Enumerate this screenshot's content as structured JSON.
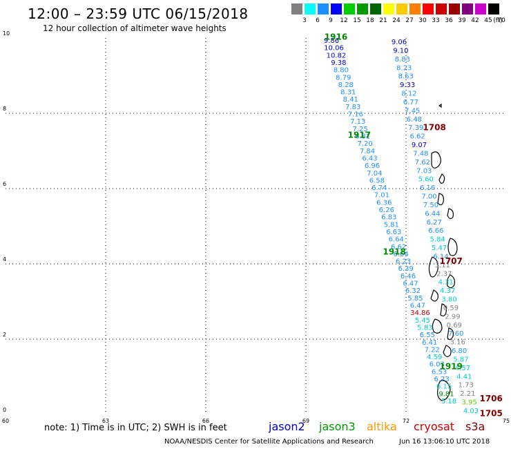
{
  "header": {
    "title": "12:00 – 23:59 UTC 06/15/2018",
    "subtitle": "12 hour collection of altimeter wave heights"
  },
  "colorbar": {
    "unit_label": "(ft)",
    "bins": [
      {
        "label": "3",
        "color": "#808080"
      },
      {
        "label": "6",
        "color": "#00ffff"
      },
      {
        "label": "9",
        "color": "#1e90ff"
      },
      {
        "label": "12",
        "color": "#0000ff"
      },
      {
        "label": "15",
        "color": "#00cc00"
      },
      {
        "label": "18",
        "color": "#009900"
      },
      {
        "label": "21",
        "color": "#006400"
      },
      {
        "label": "24",
        "color": "#ffff00"
      },
      {
        "label": "27",
        "color": "#ffcc00"
      },
      {
        "label": "30",
        "color": "#ff8000"
      },
      {
        "label": "33",
        "color": "#ff0000"
      },
      {
        "label": "36",
        "color": "#cc0000"
      },
      {
        "label": "39",
        "color": "#990000"
      },
      {
        "label": "42",
        "color": "#800080"
      },
      {
        "label": "45",
        "color": "#cc00cc"
      },
      {
        "label": "70",
        "color": "#000000"
      }
    ]
  },
  "axes": {
    "lon_ticks": [
      "60",
      "63",
      "66",
      "69",
      "72",
      "75"
    ],
    "lat_ticks": [
      "0",
      "2",
      "4",
      "6",
      "8",
      "10"
    ]
  },
  "tracks": {
    "pass_labels": [
      {
        "text": "1916",
        "color": "#008800",
        "lon": 69.9,
        "lat": 9.95
      },
      {
        "text": "1917",
        "color": "#008800",
        "lon": 70.6,
        "lat": 7.35
      },
      {
        "text": "1918",
        "color": "#008800",
        "lon": 71.65,
        "lat": 4.25
      },
      {
        "text": "1919",
        "color": "#008800",
        "lon": 73.35,
        "lat": 1.2
      },
      {
        "text": "1708",
        "color": "#800000",
        "lon": 72.85,
        "lat": 7.55
      },
      {
        "text": "1707",
        "color": "#800000",
        "lon": 73.35,
        "lat": 4.0
      },
      {
        "text": "1706",
        "color": "#800000",
        "lon": 74.55,
        "lat": 0.35
      },
      {
        "text": "1705",
        "color": "#800000",
        "lon": 74.55,
        "lat": -0.05
      }
    ],
    "west_track": [
      {
        "v": "9.86",
        "c": "#0000cc"
      },
      {
        "v": "10.06",
        "c": "#0000cc"
      },
      {
        "v": "10.82",
        "c": "#0000cc"
      },
      {
        "v": "9.38",
        "c": "#0000cc"
      },
      {
        "v": "8.80",
        "c": "#1e90ff"
      },
      {
        "v": "8.79",
        "c": "#1e90ff"
      },
      {
        "v": "8.28",
        "c": "#1e90ff"
      },
      {
        "v": "8.31",
        "c": "#1e90ff"
      },
      {
        "v": "8.41",
        "c": "#1e90ff"
      },
      {
        "v": "7.83",
        "c": "#1e90ff"
      },
      {
        "v": "7.16",
        "c": "#1e90ff"
      },
      {
        "v": "7.13",
        "c": "#1e90ff"
      },
      {
        "v": "7.25",
        "c": "#1e90ff"
      },
      {
        "v": "6.81",
        "c": "#1e90ff"
      },
      {
        "v": "7.20",
        "c": "#1e90ff"
      },
      {
        "v": "7.84",
        "c": "#1e90ff"
      },
      {
        "v": "6.43",
        "c": "#1e90ff"
      },
      {
        "v": "6.96",
        "c": "#1e90ff"
      },
      {
        "v": "7.04",
        "c": "#1e90ff"
      },
      {
        "v": "6.58",
        "c": "#1e90ff"
      },
      {
        "v": "6.74",
        "c": "#1e90ff"
      },
      {
        "v": "7.01",
        "c": "#1e90ff"
      },
      {
        "v": "6.36",
        "c": "#1e90ff"
      },
      {
        "v": "6.26",
        "c": "#1e90ff"
      },
      {
        "v": "6.83",
        "c": "#1e90ff"
      },
      {
        "v": "5.81",
        "c": "#1e90ff"
      },
      {
        "v": "6.63",
        "c": "#1e90ff"
      },
      {
        "v": "6.64",
        "c": "#1e90ff"
      },
      {
        "v": "6.62",
        "c": "#1e90ff"
      },
      {
        "v": "6.64",
        "c": "#1e90ff"
      },
      {
        "v": "6.23",
        "c": "#1e90ff"
      },
      {
        "v": "6.39",
        "c": "#1e90ff"
      },
      {
        "v": "6.46",
        "c": "#1e90ff"
      },
      {
        "v": "6.47",
        "c": "#1e90ff"
      },
      {
        "v": "6.32",
        "c": "#1e90ff"
      },
      {
        "v": "5.85",
        "c": "#1e90ff"
      },
      {
        "v": "6.47",
        "c": "#1e90ff"
      },
      {
        "v": "34.86",
        "c": "#cc0000"
      },
      {
        "v": "5.45",
        "c": "#00cccc"
      },
      {
        "v": "5.83",
        "c": "#00cccc"
      },
      {
        "v": "6.55",
        "c": "#1e90ff"
      },
      {
        "v": "6.41",
        "c": "#1e90ff"
      },
      {
        "v": "7.22",
        "c": "#1e90ff"
      },
      {
        "v": "4.59",
        "c": "#00cccc"
      },
      {
        "v": "6.03",
        "c": "#1e90ff"
      },
      {
        "v": "6.53",
        "c": "#1e90ff"
      },
      {
        "v": "6.23",
        "c": "#1e90ff"
      },
      {
        "v": "6.15",
        "c": "#00cccc"
      },
      {
        "v": "9.81",
        "c": "#008800"
      },
      {
        "v": "5.18",
        "c": "#00cccc"
      }
    ],
    "east_track": [
      {
        "v": "9.06",
        "c": "#0000cc"
      },
      {
        "v": "9.10",
        "c": "#0000cc"
      },
      {
        "v": "8.83",
        "c": "#1e90ff"
      },
      {
        "v": "8.23",
        "c": "#1e90ff"
      },
      {
        "v": "8.63",
        "c": "#1e90ff"
      },
      {
        "v": "9.33",
        "c": "#0000cc"
      },
      {
        "v": "8.12",
        "c": "#1e90ff"
      },
      {
        "v": "6.77",
        "c": "#1e90ff"
      },
      {
        "v": "7.45",
        "c": "#1e90ff"
      },
      {
        "v": "6.48",
        "c": "#1e90ff"
      },
      {
        "v": "7.39",
        "c": "#1e90ff"
      },
      {
        "v": "6.62",
        "c": "#1e90ff"
      },
      {
        "v": "9.07",
        "c": "#0000cc"
      },
      {
        "v": "7.48",
        "c": "#1e90ff"
      },
      {
        "v": "7.62",
        "c": "#1e90ff"
      },
      {
        "v": "7.03",
        "c": "#1e90ff"
      },
      {
        "v": "5.60",
        "c": "#00cccc"
      },
      {
        "v": "6.16",
        "c": "#1e90ff"
      },
      {
        "v": "7.00",
        "c": "#1e90ff"
      },
      {
        "v": "7.50",
        "c": "#1e90ff"
      },
      {
        "v": "6.44",
        "c": "#1e90ff"
      },
      {
        "v": "6.27",
        "c": "#1e90ff"
      },
      {
        "v": "6.66",
        "c": "#1e90ff"
      },
      {
        "v": "5.84",
        "c": "#00cccc"
      },
      {
        "v": "5.47",
        "c": "#00cccc"
      },
      {
        "v": "6.14",
        "c": "#1e90ff"
      },
      {
        "v": "3.11",
        "c": "#808080"
      },
      {
        "v": "2.37",
        "c": "#808080"
      },
      {
        "v": "4.31",
        "c": "#00cccc"
      },
      {
        "v": "4.37",
        "c": "#00cccc"
      },
      {
        "v": "3.80",
        "c": "#00cccc"
      },
      {
        "v": "0.59",
        "c": "#808080"
      },
      {
        "v": "2.99",
        "c": "#808080"
      },
      {
        "v": "0.69",
        "c": "#808080"
      },
      {
        "v": "7.60",
        "c": "#1e90ff"
      },
      {
        "v": "3.16",
        "c": "#808080"
      },
      {
        "v": "6.80",
        "c": "#1e90ff"
      },
      {
        "v": "5.87",
        "c": "#00cccc"
      },
      {
        "v": "4.57",
        "c": "#00cccc"
      },
      {
        "v": "4.41",
        "c": "#00cccc"
      },
      {
        "v": "1.73",
        "c": "#808080"
      },
      {
        "v": "2.21",
        "c": "#808080"
      },
      {
        "v": "3.95",
        "c": "#66cc00"
      },
      {
        "v": "4.03",
        "c": "#00cccc"
      }
    ]
  },
  "footer": {
    "note": "note: 1) Time is in UTC; 2) SWH is in feet",
    "satellites": [
      {
        "name": "jason2",
        "color": "#0000cc"
      },
      {
        "name": "jason3",
        "color": "#009900"
      },
      {
        "name": "altika",
        "color": "#ff9900"
      },
      {
        "name": "cryosat",
        "color": "#cc0000"
      },
      {
        "name": "s3a",
        "color": "#800000"
      }
    ],
    "credit": "NOAA/NESDIS Center for Satellite Applications and Research",
    "stamp": "Jun 16 13:06:10 UTC 2018"
  }
}
